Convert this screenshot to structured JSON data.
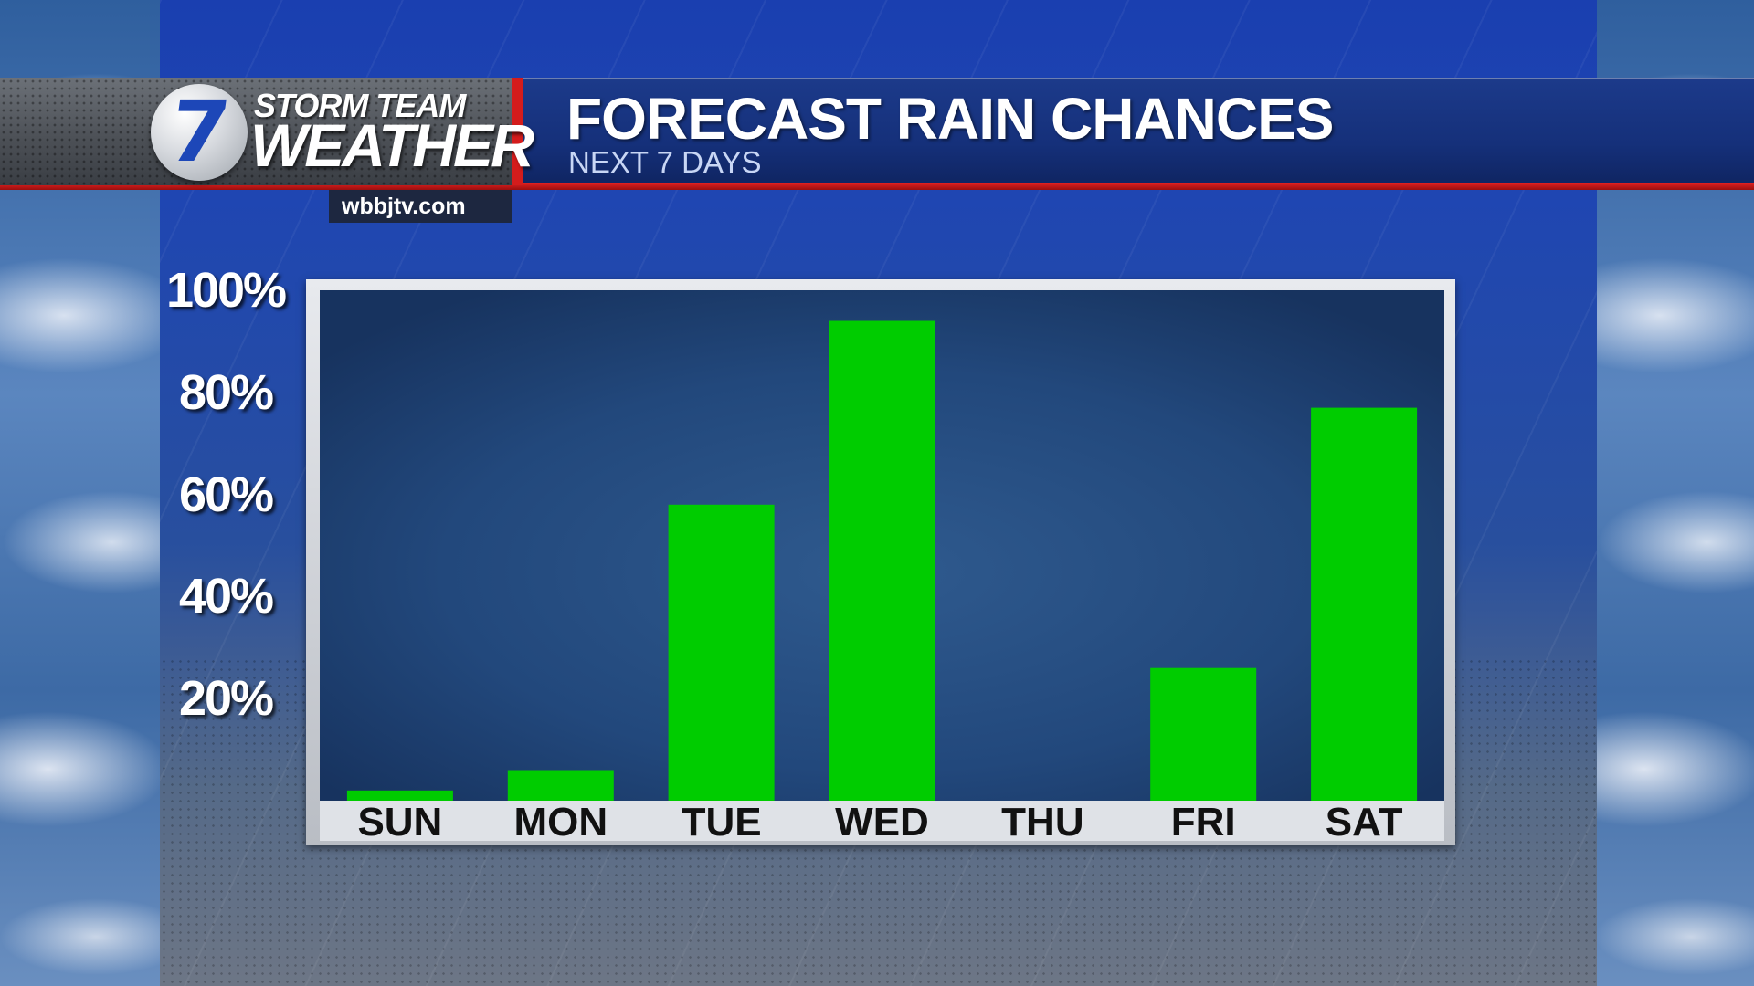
{
  "branding": {
    "logo_number": "7",
    "logo_line1": "STORM TEAM",
    "logo_line2": "WEATHER",
    "website": "wbbjtv.com"
  },
  "header": {
    "title": "FORECAST RAIN CHANCES",
    "subtitle": "NEXT 7 DAYS"
  },
  "colors": {
    "bar": "#00cc00",
    "accent_red": "#d41c1c",
    "header_blue": "#15307a"
  },
  "chart_data": {
    "type": "bar",
    "title": "FORECAST RAIN CHANCES",
    "subtitle": "NEXT 7 DAYS",
    "categories": [
      "SUN",
      "MON",
      "TUE",
      "WED",
      "THU",
      "FRI",
      "SAT"
    ],
    "values": [
      2,
      6,
      58,
      94,
      0,
      26,
      77
    ],
    "ylim": [
      0,
      100
    ],
    "yticks": [
      20,
      40,
      60,
      80,
      100
    ],
    "ytick_labels": [
      "20%",
      "40%",
      "60%",
      "80%",
      "100%"
    ],
    "xlabel": "",
    "ylabel": "",
    "grid": false,
    "legend": "none"
  }
}
